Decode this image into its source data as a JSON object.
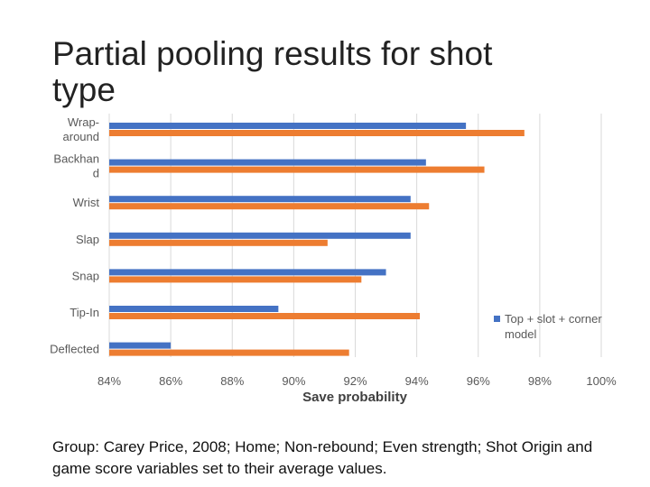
{
  "slide": {
    "title": "Partial pooling results for shot type",
    "caption": "Group: Carey Price, 2008; Home; Non-rebound; Even strength; Shot Origin and game score variables set to their average values."
  },
  "chart_data": {
    "type": "bar",
    "orientation": "horizontal",
    "categories": [
      {
        "lines": [
          "Wrap-",
          "around"
        ]
      },
      {
        "lines": [
          "Backhan",
          "d"
        ]
      },
      {
        "lines": [
          "Wrist"
        ]
      },
      {
        "lines": [
          "Slap"
        ]
      },
      {
        "lines": [
          "Snap"
        ]
      },
      {
        "lines": [
          "Tip-In"
        ]
      },
      {
        "lines": [
          "Deflected"
        ]
      }
    ],
    "series": [
      {
        "name": "Top + slot + corner model",
        "legend_lines": [
          "Top + slot + corner",
          "model"
        ],
        "color": "#4472C4",
        "values": [
          95.6,
          94.3,
          93.8,
          93.8,
          93.0,
          89.5,
          86.0
        ]
      },
      {
        "color": "#ED7D31",
        "values": [
          97.5,
          96.2,
          94.4,
          91.1,
          92.2,
          94.1,
          91.8
        ]
      }
    ],
    "xlim": [
      84,
      100
    ],
    "xticks": [
      "84%",
      "86%",
      "88%",
      "90%",
      "92%",
      "94%",
      "96%",
      "98%",
      "100%"
    ],
    "xlabel": "Save probability",
    "grid": true,
    "legend_position": "right"
  }
}
